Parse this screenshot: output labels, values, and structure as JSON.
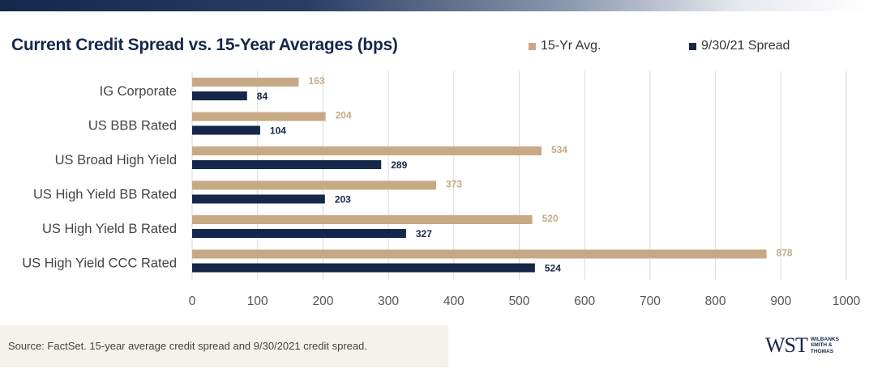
{
  "header": {
    "title": "Current Credit Spread vs. 15-Year Averages (bps)"
  },
  "legend": {
    "series_a": "15-Yr Avg.",
    "series_b": "9/30/21 Spread"
  },
  "colors": {
    "series_a": "#c8a985",
    "series_b": "#15284a",
    "label_a": "#c8a985",
    "label_b": "#15284a"
  },
  "chart_data": {
    "type": "bar",
    "orientation": "horizontal",
    "title": "Current Credit Spread vs. 15-Year Averages (bps)",
    "categories": [
      "IG Corporate",
      "US BBB Rated",
      "US Broad High Yield",
      "US High Yield BB Rated",
      "US High Yield B Rated",
      "US High Yield CCC Rated"
    ],
    "series": [
      {
        "name": "15-Yr Avg.",
        "values": [
          163,
          204,
          534,
          373,
          520,
          878
        ]
      },
      {
        "name": "9/30/21 Spread",
        "values": [
          84,
          104,
          289,
          203,
          327,
          524
        ]
      }
    ],
    "xlim": [
      0,
      1000
    ],
    "xticks": [
      0,
      100,
      200,
      300,
      400,
      500,
      600,
      700,
      800,
      900,
      1000
    ],
    "grid": "vertical",
    "legend_position": "top-right",
    "data_labels": true
  },
  "footer": {
    "source": "Source: FactSet. 15-year average credit spread and 9/30/2021 credit spread."
  },
  "logo": {
    "mark": "WST",
    "line1": "WILBANKS",
    "line2": "SMITH &",
    "line3": "THOMAS"
  }
}
